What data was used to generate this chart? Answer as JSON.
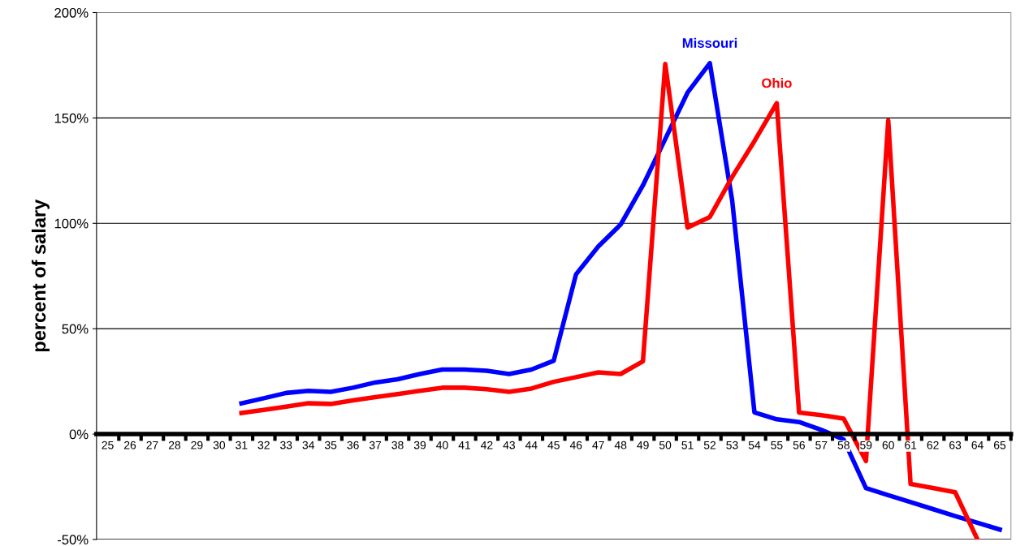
{
  "chart_data": {
    "type": "line",
    "ylabel": "percent of salary",
    "categories": [
      "25",
      "26",
      "27",
      "28",
      "29",
      "30",
      "31",
      "32",
      "33",
      "34",
      "35",
      "36",
      "37",
      "38",
      "39",
      "40",
      "41",
      "42",
      "43",
      "44",
      "45",
      "46",
      "47",
      "48",
      "49",
      "50",
      "51",
      "52",
      "53",
      "54",
      "55",
      "56",
      "57",
      "58",
      "59",
      "60",
      "61",
      "62",
      "63",
      "64",
      "65"
    ],
    "series": [
      {
        "name": "Missouri",
        "color": "#0000ff",
        "values": [
          null,
          null,
          null,
          null,
          null,
          null,
          14.6,
          17,
          19.5,
          20.5,
          20,
          22,
          24.5,
          26,
          28.5,
          30.6,
          30.6,
          30,
          28.5,
          30.6,
          34.8,
          75.8,
          89,
          99.4,
          118,
          140,
          162,
          176,
          111,
          10.3,
          7,
          5.7,
          2,
          -2.6,
          -25.6,
          -29,
          -32.3,
          -35.6,
          -38.9,
          -42.1,
          -45.3
        ]
      },
      {
        "name": "Ohio",
        "color": "#ff0000",
        "values": [
          null,
          null,
          null,
          null,
          null,
          null,
          10,
          11.5,
          13,
          14.6,
          14.3,
          16,
          17.5,
          19,
          20.5,
          22,
          22,
          21.3,
          20,
          21.6,
          24.8,
          27,
          29.3,
          28.5,
          34.5,
          175.6,
          98,
          103,
          122,
          139,
          157,
          10.2,
          9,
          7.3,
          -12.8,
          148.8,
          -23.7,
          -25.6,
          -27.6,
          -50,
          null
        ]
      }
    ],
    "ylim": [
      -50,
      200
    ],
    "yticks": [
      {
        "value": -50,
        "label": "-50%"
      },
      {
        "value": 0,
        "label": "0%"
      },
      {
        "value": 50,
        "label": "50%"
      },
      {
        "value": 100,
        "label": "100%"
      },
      {
        "value": 150,
        "label": "150%"
      },
      {
        "value": 200,
        "label": "200%"
      }
    ],
    "grid": "y",
    "legend": false,
    "marker": "none",
    "line_style": "solid"
  }
}
